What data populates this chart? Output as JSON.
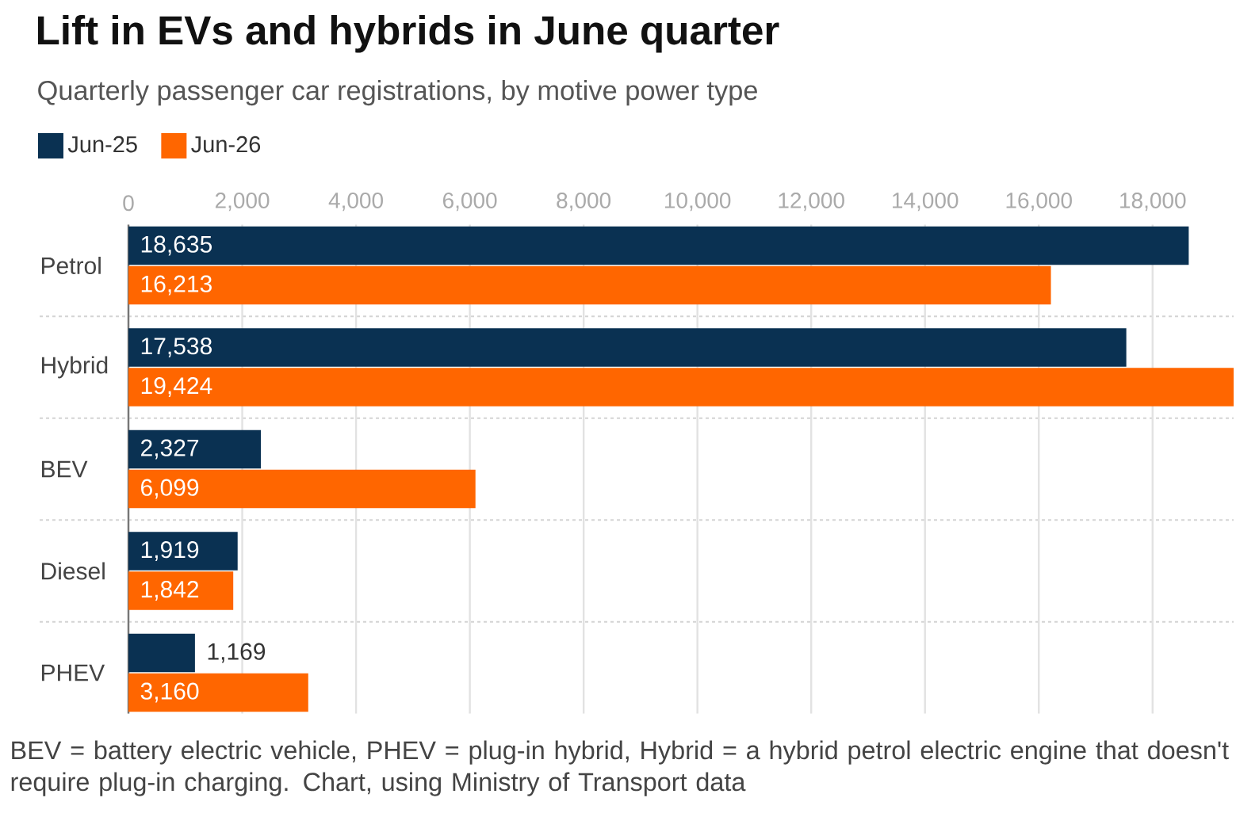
{
  "chart_data": {
    "type": "bar",
    "orientation": "horizontal",
    "title": "Lift in EVs and hybrids in June quarter",
    "subtitle": "Quarterly passenger car registrations, by motive power type",
    "categories": [
      "Petrol",
      "Hybrid",
      "BEV",
      "Diesel",
      "PHEV"
    ],
    "series": [
      {
        "name": "Jun-25",
        "color": "#0a3152",
        "values": [
          18635,
          17538,
          2327,
          1919,
          1169
        ],
        "value_labels": [
          "18,635",
          "17,538",
          "2,327",
          "1,919",
          "1,169"
        ]
      },
      {
        "name": "Jun-26",
        "color": "#ff6600",
        "values": [
          16213,
          19424,
          6099,
          1842,
          3160
        ],
        "value_labels": [
          "16,213",
          "19,424",
          "6,099",
          "1,842",
          "3,160"
        ]
      }
    ],
    "xlim": [
      0,
      19424
    ],
    "xticks": [
      0,
      {
        "value": 2000,
        "label": "2,000"
      },
      {
        "value": 4000,
        "label": "4,000"
      },
      {
        "value": 6000,
        "label": "6,000"
      },
      {
        "value": 8000,
        "label": "8,000"
      },
      {
        "value": 10000,
        "label": "10,000"
      },
      {
        "value": 12000,
        "label": "12,000"
      },
      {
        "value": 14000,
        "label": "14,000"
      },
      {
        "value": 16000,
        "label": "16,000"
      },
      {
        "value": 18000,
        "label": "18,000"
      }
    ],
    "grid": "x",
    "legend": "top left",
    "annotations": [
      "BEV = battery electric vehicle, PHEV = plug-in hybrid, Hybrid = a hybrid petrol electric engine that doesn't require plug-in charging. Chart, using Ministry of Transport data"
    ]
  }
}
